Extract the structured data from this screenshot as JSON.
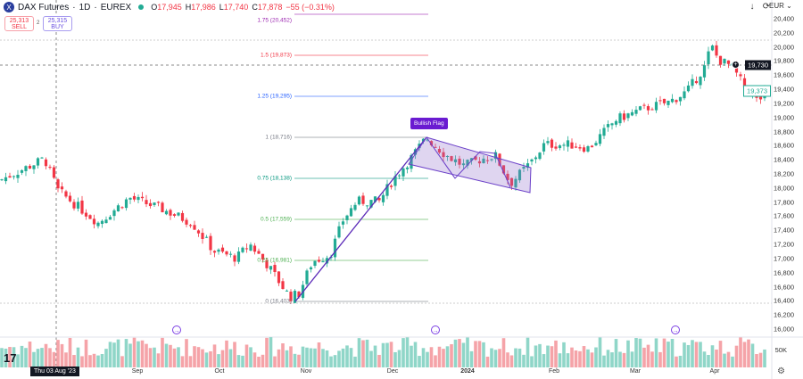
{
  "header": {
    "symbol": "DAX Futures",
    "interval": "1D",
    "exchange": "EUREX",
    "logo_letter": "X",
    "ohlc": [
      {
        "k": "O",
        "v": "17,945"
      },
      {
        "k": "H",
        "v": "17,986"
      },
      {
        "k": "L",
        "v": "17,740"
      },
      {
        "k": "C",
        "v": "17,878"
      }
    ],
    "change": "−55 (−0.31%)"
  },
  "trade": {
    "sell_price": "25,313",
    "sell_label": "SELL",
    "spread": "2",
    "buy_price": "25,315",
    "buy_label": "BUY"
  },
  "toolbar": {
    "currency": "EUR",
    "download_icon": "↓",
    "refresh_icon": "⟳"
  },
  "price_axis": {
    "ticks": [
      "20,400",
      "20,200",
      "20,000",
      "19,800",
      "19,600",
      "19,400",
      "19,200",
      "19,000",
      "18,800",
      "18,600",
      "18,400",
      "18,200",
      "18,000",
      "17,800",
      "17,600",
      "17,400",
      "17,200",
      "17,000",
      "16,800",
      "16,600",
      "16,400",
      "16,200",
      "16,000"
    ],
    "crosshair_price": "19,730",
    "last_price": "19,373"
  },
  "time_axis": {
    "ticks": [
      "Sep",
      "Oct",
      "Nov",
      "Dec",
      "2024",
      "Feb",
      "Mar",
      "Apr"
    ],
    "crosshair_date": "Thu 03 Aug '23"
  },
  "volume": {
    "tick": "50K"
  },
  "fib": [
    {
      "label": "1.75 (20,452)",
      "color": "#9c27b0"
    },
    {
      "label": "1.5 (19,873)",
      "color": "#f23645"
    },
    {
      "label": "1.25 (19,295)",
      "color": "#2962ff"
    },
    {
      "label": "1 (18,716)",
      "color": "#787b86"
    },
    {
      "label": "0.75 (18,138)",
      "color": "#089981"
    },
    {
      "label": "0.5 (17,559)",
      "color": "#4caf50"
    },
    {
      "label": "0.25 (16,981)",
      "color": "#4caf50"
    },
    {
      "label": "0 (16,403)",
      "color": "#787b86"
    }
  ],
  "annotation": {
    "label": "Bullish Flag",
    "color": "#6a1bd1"
  },
  "colors": {
    "up": "#22ab94",
    "down": "#f23645",
    "up_vol": "#8fd6c8",
    "down_vol": "#f5a3a8"
  },
  "chart_data": {
    "type": "candlestick",
    "symbol": "DAX Futures",
    "ylim": [
      16000,
      20400
    ],
    "close_path": [
      [
        0,
        18100
      ],
      [
        50,
        18400
      ],
      [
        65,
        17950
      ],
      [
        110,
        17500
      ],
      [
        145,
        17850
      ],
      [
        180,
        17700
      ],
      [
        215,
        17500
      ],
      [
        240,
        17100
      ],
      [
        265,
        17000
      ],
      [
        280,
        17200
      ],
      [
        300,
        16900
      ],
      [
        325,
        16450
      ],
      [
        335,
        16500
      ],
      [
        350,
        16950
      ],
      [
        370,
        17050
      ],
      [
        385,
        17550
      ],
      [
        400,
        17800
      ],
      [
        425,
        17800
      ],
      [
        440,
        18100
      ],
      [
        460,
        18400
      ],
      [
        478,
        18700
      ],
      [
        500,
        18450
      ],
      [
        520,
        18300
      ],
      [
        540,
        18400
      ],
      [
        555,
        18450
      ],
      [
        572,
        18050
      ],
      [
        595,
        18350
      ],
      [
        610,
        18600
      ],
      [
        640,
        18600
      ],
      [
        660,
        18550
      ],
      [
        690,
        18950
      ],
      [
        720,
        19100
      ],
      [
        750,
        19200
      ],
      [
        770,
        19350
      ],
      [
        790,
        19700
      ],
      [
        797,
        20000
      ],
      [
        805,
        19800
      ],
      [
        820,
        19700
      ],
      [
        835,
        19400
      ],
      [
        850,
        19200
      ],
      [
        858,
        19373
      ]
    ]
  }
}
